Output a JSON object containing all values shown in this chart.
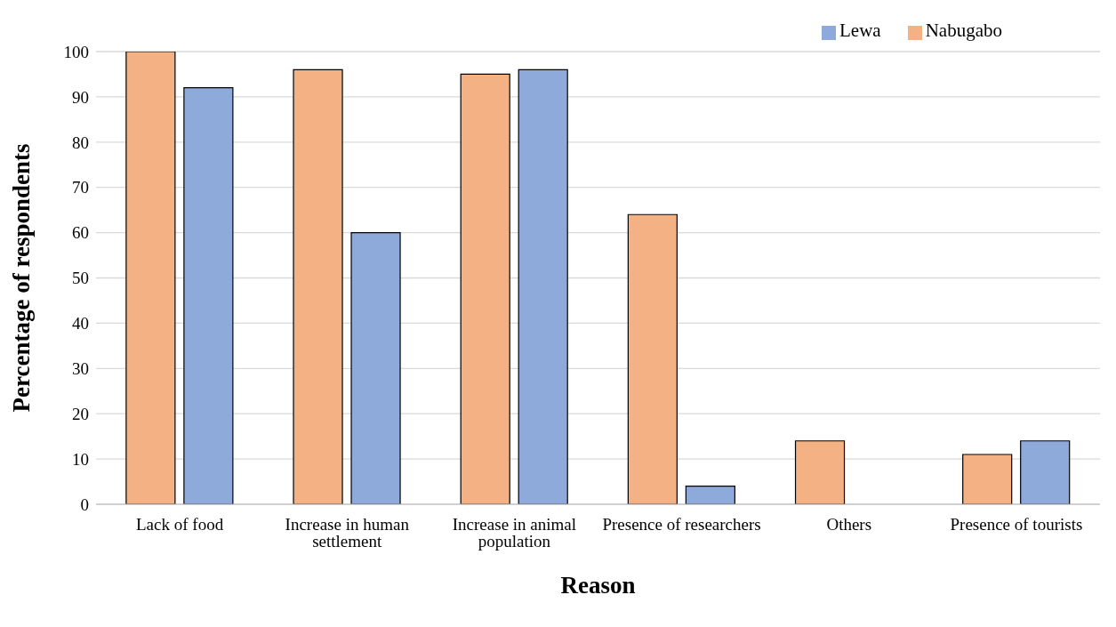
{
  "chart_data": {
    "type": "bar",
    "xlabel": "Reason",
    "ylabel": "Percentage of respondents",
    "categories": [
      "Lack of food",
      "Increase in human settlement",
      "Increase in animal population",
      "Presence of researchers",
      "Others",
      "Presence of tourists"
    ],
    "series": [
      {
        "name": "Nabugabo",
        "color": "#f4b183",
        "values": [
          100,
          96,
          95,
          64,
          14,
          11
        ]
      },
      {
        "name": "Lewa",
        "color": "#8eaadb",
        "values": [
          92,
          60,
          96,
          4,
          null,
          14
        ]
      }
    ],
    "ylim": [
      0,
      100
    ],
    "yticks": [
      0,
      10,
      20,
      30,
      40,
      50,
      60,
      70,
      80,
      90,
      100
    ],
    "grid": "y",
    "legend": "top right"
  }
}
